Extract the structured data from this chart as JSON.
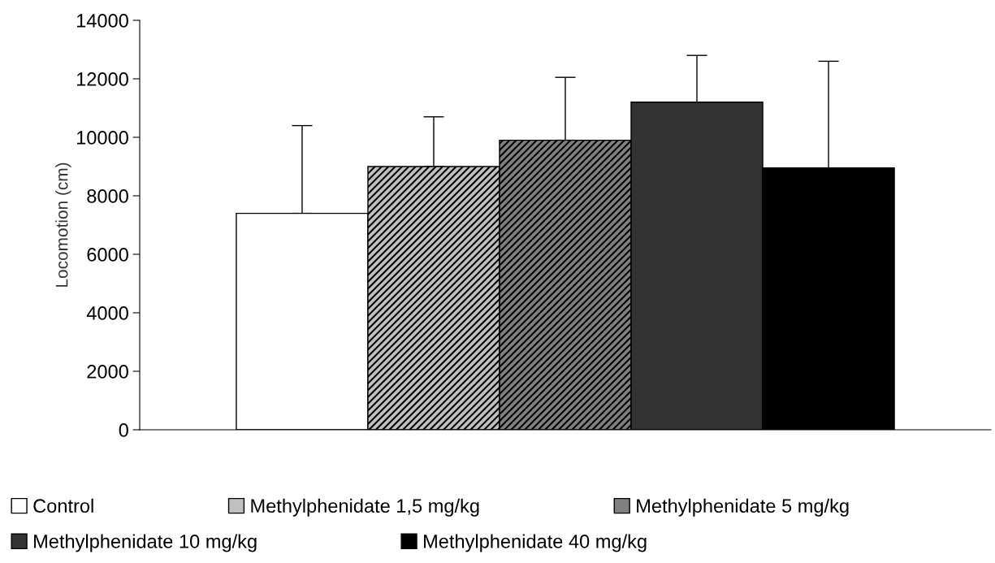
{
  "chart_data": {
    "type": "bar",
    "ylabel": "Locomotion (cm)",
    "categories": [
      null
    ],
    "series": [
      {
        "name": "Control",
        "color": "#ffffff",
        "values": [
          7400
        ],
        "errors": [
          [
            7400,
            10400
          ]
        ]
      },
      {
        "name": "Methylphenidate 1,5 mg/kg",
        "color": "#c0c0c0",
        "values": [
          9000
        ],
        "errors": [
          [
            9000,
            10700
          ]
        ]
      },
      {
        "name": "Methylphenidate 5 mg/kg",
        "color": "#808080",
        "values": [
          9900
        ],
        "errors": [
          [
            9900,
            12050
          ]
        ]
      },
      {
        "name": "Methylphenidate 10 mg/kg",
        "color": "#333333",
        "values": [
          11200
        ],
        "errors": [
          [
            11200,
            12800
          ]
        ]
      },
      {
        "name": "Methylphenidate 40 mg/kg",
        "color": "#000000",
        "values": [
          8950
        ],
        "errors": [
          [
            8950,
            12600
          ]
        ]
      }
    ],
    "ylim": [
      0,
      14000
    ],
    "yticks": [
      0,
      2000,
      4000,
      6000,
      8000,
      10000,
      12000,
      14000
    ],
    "grid": false,
    "legend": "bottom"
  }
}
